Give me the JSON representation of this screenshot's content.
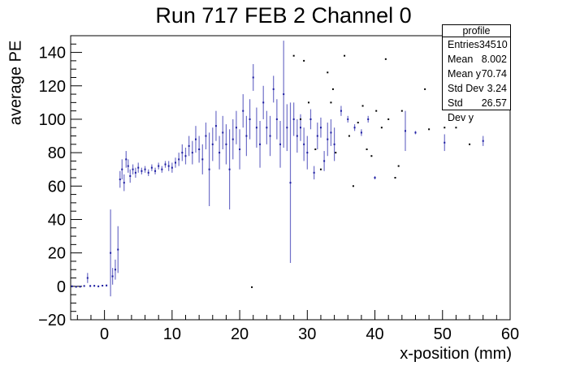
{
  "chart_data": {
    "type": "scatter",
    "title": "Run 717 FEB 2 Channel 0",
    "xlabel": "x-position (mm)",
    "ylabel": "average PE",
    "xlim": [
      -5,
      60
    ],
    "ylim": [
      -20,
      150
    ],
    "xticks": [
      0,
      10,
      20,
      30,
      40,
      50,
      60
    ],
    "yticks": [
      -20,
      0,
      20,
      40,
      60,
      80,
      100,
      120,
      140
    ],
    "grid": false,
    "marker_color": "#1a1aa0",
    "errorbar_color": "#6f6fc8",
    "stats_box": {
      "name": "profile",
      "rows": [
        {
          "label": "Entries",
          "value": "34510"
        },
        {
          "label": "Mean",
          "value": "8.002"
        },
        {
          "label": "Mean y",
          "value": "70.74"
        },
        {
          "label": "Std Dev",
          "value": "3.24"
        },
        {
          "label": "Std Dev y",
          "value": "26.57"
        }
      ]
    },
    "series": [
      {
        "points": [
          {
            "x": -4.8,
            "y": 0,
            "err": 0.6
          },
          {
            "x": -4.2,
            "y": -0.3,
            "err": 0.5
          },
          {
            "x": -3.6,
            "y": -0.2,
            "err": 0.5
          },
          {
            "x": -3.0,
            "y": 0.2,
            "err": 0.5
          },
          {
            "x": -2.5,
            "y": 5.0,
            "err": 3.0
          },
          {
            "x": -2.1,
            "y": 0.2,
            "err": 0.6
          },
          {
            "x": -1.5,
            "y": 0.3,
            "err": 0.5
          },
          {
            "x": -0.9,
            "y": 0,
            "err": 0.5
          },
          {
            "x": -0.3,
            "y": 0.4,
            "err": 0.5
          },
          {
            "x": 0.3,
            "y": 0.5,
            "err": 0.6
          },
          {
            "x": 0.9,
            "y": 20,
            "err": 26
          },
          {
            "x": 1.2,
            "y": 6,
            "err": 5
          },
          {
            "x": 1.6,
            "y": 10,
            "err": 6
          },
          {
            "x": 2.0,
            "y": 22,
            "err": 14
          },
          {
            "x": 2.3,
            "y": 64,
            "err": 5
          },
          {
            "x": 2.6,
            "y": 70,
            "err": 6
          },
          {
            "x": 2.9,
            "y": 62,
            "err": 5
          },
          {
            "x": 3.2,
            "y": 76,
            "err": 5
          },
          {
            "x": 3.5,
            "y": 72,
            "err": 4
          },
          {
            "x": 3.8,
            "y": 66,
            "err": 4
          },
          {
            "x": 4.2,
            "y": 70,
            "err": 3
          },
          {
            "x": 4.6,
            "y": 68,
            "err": 3
          },
          {
            "x": 5.0,
            "y": 71,
            "err": 3
          },
          {
            "x": 5.5,
            "y": 69,
            "err": 2
          },
          {
            "x": 6.0,
            "y": 70,
            "err": 2
          },
          {
            "x": 6.5,
            "y": 68,
            "err": 2
          },
          {
            "x": 7.0,
            "y": 71,
            "err": 2
          },
          {
            "x": 7.5,
            "y": 69,
            "err": 2
          },
          {
            "x": 8.0,
            "y": 72,
            "err": 2
          },
          {
            "x": 8.5,
            "y": 70,
            "err": 2
          },
          {
            "x": 9.0,
            "y": 73,
            "err": 2
          },
          {
            "x": 9.5,
            "y": 72,
            "err": 3
          },
          {
            "x": 10.0,
            "y": 71,
            "err": 3
          },
          {
            "x": 10.5,
            "y": 74,
            "err": 3
          },
          {
            "x": 11.0,
            "y": 76,
            "err": 4
          },
          {
            "x": 11.5,
            "y": 80,
            "err": 5
          },
          {
            "x": 12.0,
            "y": 78,
            "err": 5
          },
          {
            "x": 12.5,
            "y": 84,
            "err": 6
          },
          {
            "x": 13.0,
            "y": 80,
            "err": 7
          },
          {
            "x": 13.5,
            "y": 88,
            "err": 8
          },
          {
            "x": 14.0,
            "y": 82,
            "err": 8
          },
          {
            "x": 14.5,
            "y": 76,
            "err": 9
          },
          {
            "x": 15.0,
            "y": 90,
            "err": 8
          },
          {
            "x": 15.5,
            "y": 70,
            "err": 22
          },
          {
            "x": 16.0,
            "y": 85,
            "err": 10
          },
          {
            "x": 16.5,
            "y": 96,
            "err": 9
          },
          {
            "x": 17.0,
            "y": 80,
            "err": 10
          },
          {
            "x": 17.5,
            "y": 92,
            "err": 10
          },
          {
            "x": 18.0,
            "y": 85,
            "err": 12
          },
          {
            "x": 18.5,
            "y": 70,
            "err": 24
          },
          {
            "x": 19.0,
            "y": 88,
            "err": 12
          },
          {
            "x": 19.5,
            "y": 95,
            "err": 10
          },
          {
            "x": 20.0,
            "y": 82,
            "err": 12
          },
          {
            "x": 20.5,
            "y": 105,
            "err": 10
          },
          {
            "x": 21.0,
            "y": 90,
            "err": 12
          },
          {
            "x": 21.5,
            "y": 100,
            "err": 12
          },
          {
            "x": 22.0,
            "y": 125,
            "err": 8
          },
          {
            "x": 22.5,
            "y": 95,
            "err": 12
          },
          {
            "x": 23.0,
            "y": 85,
            "err": 14
          },
          {
            "x": 23.5,
            "y": 110,
            "err": 10
          },
          {
            "x": 24.0,
            "y": 95,
            "err": 10
          },
          {
            "x": 24.5,
            "y": 90,
            "err": 12
          },
          {
            "x": 25.0,
            "y": 118,
            "err": 8
          },
          {
            "x": 25.5,
            "y": 100,
            "err": 12
          },
          {
            "x": 26.0,
            "y": 85,
            "err": 14
          },
          {
            "x": 26.5,
            "y": 115,
            "err": 32
          },
          {
            "x": 27.0,
            "y": 95,
            "err": 14
          },
          {
            "x": 27.5,
            "y": 62,
            "err": 48
          },
          {
            "x": 28.0,
            "y": 100,
            "err": 10
          },
          {
            "x": 28.5,
            "y": 90,
            "err": 10
          },
          {
            "x": 29.0,
            "y": 95,
            "err": 8
          },
          {
            "x": 29.5,
            "y": 85,
            "err": 10
          },
          {
            "x": 30.0,
            "y": 80,
            "err": 10
          },
          {
            "x": 30.5,
            "y": 100,
            "err": 6
          },
          {
            "x": 31.0,
            "y": 68,
            "err": 4
          },
          {
            "x": 31.5,
            "y": 90,
            "err": 8
          },
          {
            "x": 32.0,
            "y": 95,
            "err": 6
          },
          {
            "x": 32.5,
            "y": 75,
            "err": 6
          },
          {
            "x": 33.0,
            "y": 88,
            "err": 10
          },
          {
            "x": 33.5,
            "y": 92,
            "err": 8
          },
          {
            "x": 34.0,
            "y": 85,
            "err": 10
          },
          {
            "x": 35.0,
            "y": 105,
            "err": 3
          },
          {
            "x": 36.0,
            "y": 100,
            "err": 2
          },
          {
            "x": 37.0,
            "y": 95,
            "err": 2
          },
          {
            "x": 38.0,
            "y": 92,
            "err": 2
          },
          {
            "x": 39.0,
            "y": 100,
            "err": 2
          },
          {
            "x": 40.0,
            "y": 65,
            "err": 1
          },
          {
            "x": 44.5,
            "y": 93,
            "err": 12
          },
          {
            "x": 46.0,
            "y": 92,
            "err": 1
          },
          {
            "x": 50.3,
            "y": 86,
            "err": 5
          },
          {
            "x": 56.0,
            "y": 87,
            "err": 3
          }
        ]
      },
      {
        "markers_only": true,
        "points": [
          {
            "x": 21.8,
            "y": -0.5
          },
          {
            "x": 28.0,
            "y": 138
          },
          {
            "x": 29.5,
            "y": 135
          },
          {
            "x": 29.0,
            "y": 100
          },
          {
            "x": 30.2,
            "y": 110
          },
          {
            "x": 33.0,
            "y": 128
          },
          {
            "x": 33.5,
            "y": 110
          },
          {
            "x": 33.8,
            "y": 118
          },
          {
            "x": 35.5,
            "y": 138
          },
          {
            "x": 36.2,
            "y": 90
          },
          {
            "x": 37.5,
            "y": 98
          },
          {
            "x": 38.2,
            "y": 108
          },
          {
            "x": 38.8,
            "y": 82
          },
          {
            "x": 39.5,
            "y": 78
          },
          {
            "x": 40.2,
            "y": 105
          },
          {
            "x": 41.0,
            "y": 95
          },
          {
            "x": 41.6,
            "y": 136
          },
          {
            "x": 42.0,
            "y": 100
          },
          {
            "x": 43.0,
            "y": 65
          },
          {
            "x": 43.5,
            "y": 72
          },
          {
            "x": 44.0,
            "y": 105
          },
          {
            "x": 47.4,
            "y": 118
          },
          {
            "x": 48.0,
            "y": 94
          },
          {
            "x": 50.3,
            "y": 95
          },
          {
            "x": 52.0,
            "y": 95
          },
          {
            "x": 54.0,
            "y": 85
          },
          {
            "x": 36.8,
            "y": 60
          },
          {
            "x": 31.2,
            "y": 82
          },
          {
            "x": 32.0,
            "y": 70
          },
          {
            "x": 34.2,
            "y": 80
          }
        ]
      }
    ]
  }
}
